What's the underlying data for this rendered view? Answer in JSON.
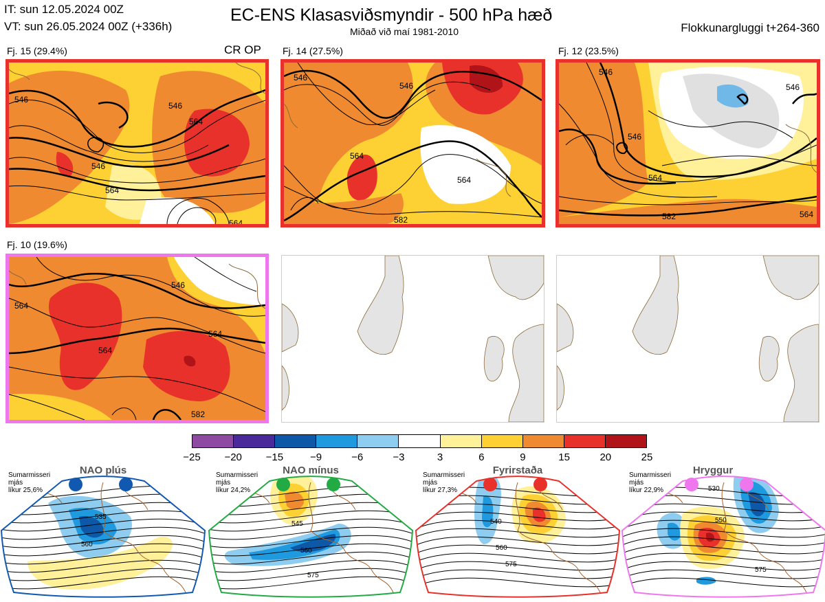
{
  "header": {
    "it_line": "IT: sun 12.05.2024 00Z",
    "vt_line": "VT: sun 26.05.2024 00Z  (+336h)",
    "title": "EC-ENS Klasasviðsmyndir - 500 hPa hæð",
    "subtitle": "Miðað við maí 1981-2010",
    "window": "Flokkunargluggi t+264-360"
  },
  "panels": [
    {
      "label": "Fj. 15 (29.4%)",
      "extra": "CR OP",
      "border_color": "#e8312a",
      "contour_labels": [
        "546",
        "564",
        "546",
        "564",
        "564",
        "546"
      ]
    },
    {
      "label": "Fj. 14 (27.5%)",
      "extra": "",
      "border_color": "#e8312a",
      "contour_labels": [
        "546",
        "546",
        "564",
        "564",
        "582"
      ]
    },
    {
      "label": "Fj. 12 (23.5%)",
      "extra": "",
      "border_color": "#e8312a",
      "contour_labels": [
        "546",
        "546",
        "564",
        "582",
        "546",
        "564"
      ]
    },
    {
      "label": "Fj. 10 (19.6%)",
      "extra": "",
      "border_color": "#ee77ee",
      "contour_labels": [
        "546",
        "564",
        "564",
        "564",
        "582"
      ]
    }
  ],
  "colorbar": {
    "ticks": [
      "−25",
      "−20",
      "−15",
      "−9",
      "−6",
      "−3",
      "3",
      "6",
      "9",
      "15",
      "20",
      "25"
    ],
    "colors": [
      "#8e4aa2",
      "#4a2a9a",
      "#0e58a8",
      "#1f9adf",
      "#8ecdf0",
      "#ffffff",
      "#fff09a",
      "#fdd133",
      "#f08a30",
      "#e8312a",
      "#b01418"
    ]
  },
  "regimes": [
    {
      "name": "NAO plús",
      "text": "Sumarmisseri\nmjás\nlíkur 25,6%",
      "color": "#1058b0",
      "contour_labels": [
        "535",
        "560"
      ]
    },
    {
      "name": "NAO mínus",
      "text": "Sumarmisseri\nmjás\nlíkur 24,2%",
      "color": "#22aa44",
      "contour_labels": [
        "545",
        "560",
        "575"
      ]
    },
    {
      "name": "Fyrirstaða",
      "text": "Sumarmisseri\nmjás\nlíkur 27,3%",
      "color": "#e8312a",
      "contour_labels": [
        "540",
        "560",
        "575"
      ]
    },
    {
      "name": "Hryggur",
      "text": "Sumarmisseri\nmjás\nlíkur 22,9%",
      "color": "#ee77ee",
      "contour_labels": [
        "530",
        "550",
        "575"
      ]
    }
  ]
}
